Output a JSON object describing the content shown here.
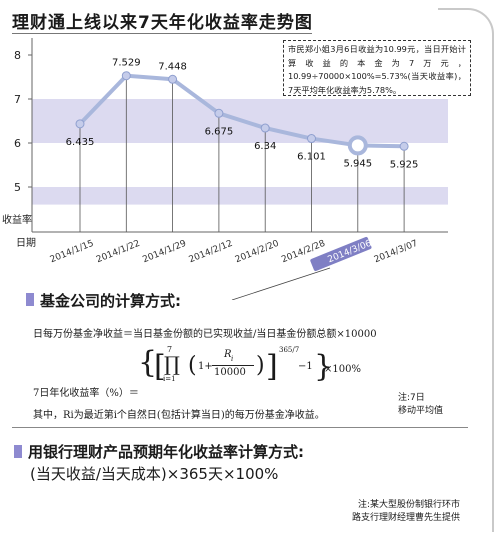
{
  "title": "理财通上线以来7天年化收益率走势图",
  "chart_data": {
    "type": "line",
    "ylabel": "收益率",
    "xlabel": "日期",
    "yticks": [
      5,
      6,
      7,
      8
    ],
    "ylim": [
      4.6,
      8.2
    ],
    "categories": [
      "2014/1/15",
      "2014/1/22",
      "2014/1/29",
      "2014/2/12",
      "2014/2/20",
      "2014/2/28",
      "2014/3/06",
      "2014/3/07"
    ],
    "values": [
      6.435,
      7.529,
      7.448,
      6.675,
      6.34,
      6.101,
      5.945,
      5.925
    ],
    "value_labels": [
      "6.435",
      "7.529",
      "7.448",
      "6.675",
      "6.34",
      "6.101",
      "5.945",
      "5.925"
    ],
    "highlight_category": "2014/3/06",
    "bands": [
      [
        6,
        7
      ],
      [
        4.6,
        5
      ]
    ],
    "colors": {
      "line": "#a9b7dc",
      "band": "#dcdaf0",
      "marker_fill": "#c5ccea",
      "highlight": "#7f7fc4"
    }
  },
  "note": "市民郑小姐3月6日收益为10.99元，当日开始计算收益的本金为7万元，10.99÷70000×100%=5.73%(当天收益率)，7天平均年化收益率为5.78%。",
  "section1": {
    "title": "基金公司的计算方式:",
    "daily_formula": "日每万份基金净收益＝当日基金份额的已实现收益/当日基金份额总额×10000",
    "annual_label": "7日年化收益率（%）＝",
    "formula_parts": {
      "prod_top": "7",
      "prod_bottom": "i=1",
      "one_plus": "1+",
      "numerator": "R",
      "sub": "i",
      "denominator": "10000",
      "exponent": "365/7",
      "tail": "−1",
      "times": "×100%"
    },
    "explain": "其中，Ri为最近第i个自然日(包括计算当日)的每万份基金净收益。",
    "side_note_1": "注:7日",
    "side_note_2": "移动平均值"
  },
  "section2": {
    "title": "用银行理财产品预期年化收益率计算方式:",
    "formula": "(当天收益/当天成本)×365天×100%"
  },
  "source_1": "注:某大型股份制银行环市",
  "source_2": "路支行理财经理曹先生提供"
}
